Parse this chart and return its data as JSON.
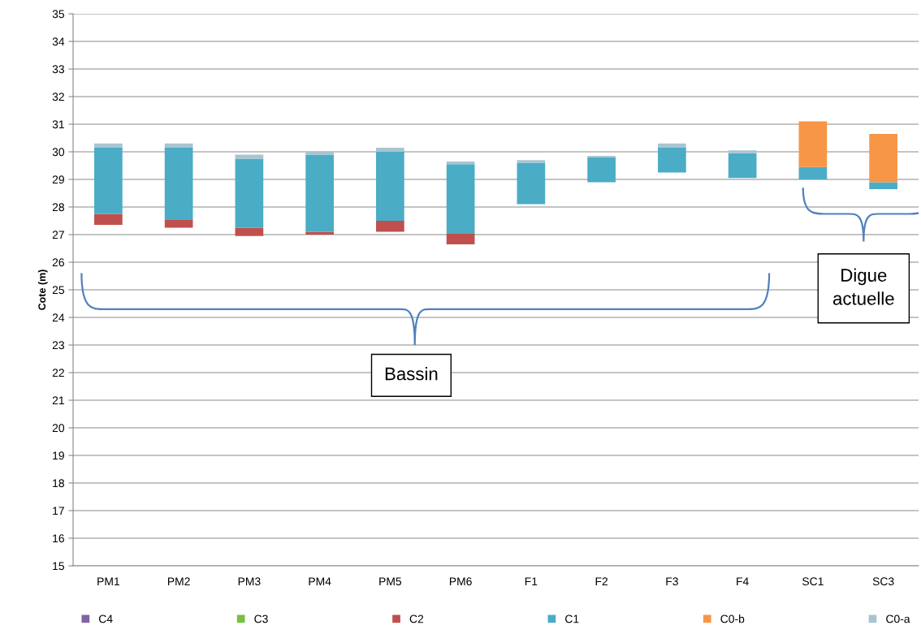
{
  "chart_data": {
    "type": "bar",
    "ylabel": "Cote (m)",
    "categories": [
      "PM1",
      "PM2",
      "PM3",
      "PM4",
      "PM5",
      "PM6",
      "F1",
      "F2",
      "F3",
      "F4",
      "SC1",
      "SC3"
    ],
    "series": [
      {
        "name": "C4",
        "color": "#8064a2",
        "values": [
          null,
          null,
          null,
          null,
          null,
          null,
          null,
          null,
          null,
          null,
          null,
          null
        ]
      },
      {
        "name": "C3",
        "color": "#77c043",
        "values": [
          null,
          null,
          null,
          null,
          null,
          null,
          null,
          null,
          null,
          null,
          null,
          null
        ]
      },
      {
        "name": "C2",
        "color": "#c0504d",
        "values": [
          0.4,
          0.3,
          0.3,
          0.1,
          0.4,
          0.4,
          null,
          null,
          null,
          null,
          null,
          null
        ],
        "base": [
          27.35,
          27.25,
          26.95,
          27.0,
          27.1,
          26.65,
          null,
          null,
          null,
          null,
          null,
          null
        ]
      },
      {
        "name": "C1",
        "color": "#4bacc6",
        "values": [
          2.4,
          2.6,
          2.5,
          2.8,
          2.5,
          2.5,
          1.5,
          0.9,
          0.9,
          0.9,
          0.45,
          0.25
        ],
        "base": [
          27.75,
          27.55,
          27.25,
          27.1,
          27.5,
          27.05,
          28.1,
          28.9,
          29.25,
          29.05,
          29.0,
          28.65
        ]
      },
      {
        "name": "C0-b",
        "color": "#f79646",
        "values": [
          null,
          null,
          null,
          null,
          null,
          null,
          null,
          null,
          null,
          null,
          1.65,
          1.75
        ],
        "base": [
          null,
          null,
          null,
          null,
          null,
          null,
          null,
          null,
          null,
          null,
          29.45,
          28.9
        ]
      },
      {
        "name": "C0-a",
        "color": "#a9c4d0",
        "values": [
          0.15,
          0.15,
          0.15,
          0.1,
          0.15,
          0.1,
          0.1,
          0.05,
          0.15,
          0.1,
          null,
          null
        ],
        "base": [
          30.15,
          30.15,
          29.75,
          29.9,
          30.0,
          29.55,
          29.6,
          29.8,
          30.15,
          29.95,
          null,
          null
        ]
      }
    ],
    "ylim": [
      15,
      35
    ],
    "yticks": [
      15,
      16,
      17,
      18,
      19,
      20,
      21,
      22,
      23,
      24,
      25,
      26,
      27,
      28,
      29,
      30,
      31,
      32,
      33,
      34,
      35
    ],
    "grid": "y",
    "legend": "bottom",
    "annotations": [
      "Bassin",
      "Digue actuelle"
    ]
  }
}
